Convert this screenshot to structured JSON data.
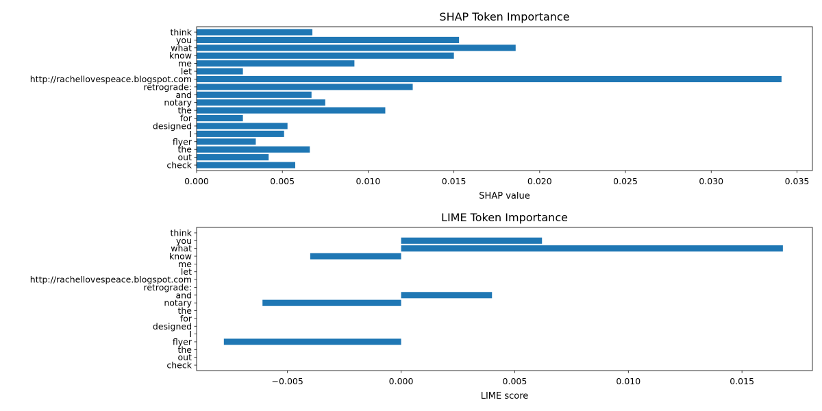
{
  "chart_data": [
    {
      "type": "bar",
      "orientation": "horizontal",
      "title": "SHAP Token Importance",
      "xlabel": "SHAP value",
      "ylabel": "",
      "categories": [
        "check",
        "out",
        "the",
        "flyer",
        "I",
        "designed",
        "for",
        "the",
        "notary",
        "and",
        "retrograde:",
        "http://rachellovespeace.blogspot.com",
        "let",
        "me",
        "know",
        "what",
        "you",
        "think"
      ],
      "values": [
        0.00575,
        0.0042,
        0.0066,
        0.00345,
        0.0051,
        0.0053,
        0.0027,
        0.011,
        0.0075,
        0.0067,
        0.0126,
        0.0341,
        0.0027,
        0.0092,
        0.015,
        0.0186,
        0.0153,
        0.00675
      ],
      "xlim": [
        0.0,
        0.0359
      ],
      "xticks": [
        0.0,
        0.005,
        0.01,
        0.015,
        0.02,
        0.025,
        0.03,
        0.035
      ],
      "xtick_labels": [
        "0.000",
        "0.005",
        "0.010",
        "0.015",
        "0.020",
        "0.025",
        "0.030",
        "0.035"
      ],
      "bar_color": "#1f77b4",
      "grid": false,
      "legend": "none"
    },
    {
      "type": "bar",
      "orientation": "horizontal",
      "title": "LIME Token Importance",
      "xlabel": "LIME score",
      "ylabel": "",
      "categories": [
        "check",
        "out",
        "the",
        "flyer",
        "I",
        "designed",
        "for",
        "the",
        "notary",
        "and",
        "retrograde:",
        "http://rachellovespeace.blogspot.com",
        "let",
        "me",
        "know",
        "what",
        "you",
        "think"
      ],
      "values": [
        0,
        0,
        0,
        -0.0078,
        0,
        0,
        0,
        0,
        -0.0061,
        0.004,
        0,
        0,
        0,
        0,
        -0.004,
        0.0168,
        0.0062,
        0
      ],
      "xlim": [
        -0.009,
        0.0181
      ],
      "xticks": [
        -0.005,
        0.0,
        0.005,
        0.01,
        0.015
      ],
      "xtick_labels": [
        "−0.005",
        "0.000",
        "0.005",
        "0.010",
        "0.015"
      ],
      "bar_color": "#1f77b4",
      "grid": false,
      "legend": "none"
    }
  ]
}
